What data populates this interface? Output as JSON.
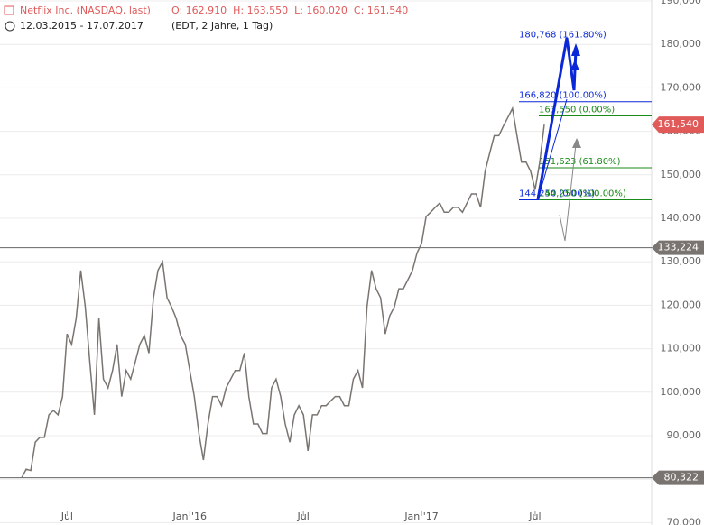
{
  "chart_data": {
    "type": "line",
    "title": "Netflix Inc. (NASDAQ, last)",
    "ohlc": "O: 162,910  H: 163,550  L: 160,020  C: 161,540",
    "range": "12.03.2015 - 17.07.2017",
    "settings": "(EDT, 2 Jahre, 1 Tag)",
    "categories": [
      null,
      null,
      null,
      null,
      null,
      null,
      null,
      null,
      null,
      null,
      "Jul",
      null,
      null,
      null,
      null,
      null,
      null,
      null,
      null,
      null,
      null,
      null,
      null,
      null,
      null,
      null,
      null,
      null,
      null,
      null,
      null,
      null,
      null,
      null,
      null,
      null,
      null,
      "Jan '16",
      null,
      null,
      null,
      null,
      null,
      null,
      null,
      null,
      null,
      null,
      null,
      null,
      null,
      null,
      null,
      null,
      null,
      null,
      null,
      null,
      null,
      null,
      null,
      null,
      "Jul",
      null,
      null,
      null,
      null,
      null,
      null,
      null,
      null,
      null,
      null,
      null,
      null,
      null,
      null,
      null,
      null,
      null,
      null,
      null,
      null,
      null,
      null,
      null,
      null,
      null,
      "Jan '17",
      null,
      null,
      null,
      null,
      null,
      null,
      null,
      null,
      null,
      null,
      null,
      null,
      null,
      null,
      null,
      null,
      null,
      null,
      null,
      null,
      null,
      null,
      null,
      null,
      "Jul",
      null,
      null
    ],
    "series": [
      {
        "name": "Netflix Inc.",
        "color": "#7a7470",
        "values": [
          80.3,
          82.3,
          82,
          88.5,
          89.6,
          89.6,
          94.8,
          95.8,
          94.8,
          99,
          113.4,
          111,
          117,
          128,
          119.6,
          107,
          94.8,
          117,
          103,
          101,
          105,
          111,
          99,
          105,
          103,
          107,
          111,
          113,
          109,
          121.7,
          128,
          130,
          121.7,
          119.6,
          117,
          113,
          111,
          105,
          99,
          90.5,
          84.4,
          92.7,
          99,
          99,
          96.9,
          101,
          103,
          105,
          105,
          109,
          99,
          92.7,
          92.7,
          90.5,
          90.5,
          101,
          103,
          99,
          92.7,
          88.5,
          94.8,
          96.9,
          94.8,
          86.5,
          94.8,
          94.8,
          96.9,
          96.9,
          98,
          99,
          99,
          96.9,
          96.9,
          103,
          105,
          101,
          119.6,
          128,
          123.8,
          121.7,
          113.4,
          117.6,
          119.6,
          123.8,
          123.8,
          125.9,
          128,
          132,
          134.2,
          140.4,
          141.4,
          142.5,
          143.5,
          141.4,
          141.4,
          142.5,
          142.5,
          141.4,
          143.5,
          145.6,
          145.6,
          142.5,
          150.8,
          155,
          159,
          159,
          161.2,
          163.2,
          165.3,
          159,
          152.9,
          152.9,
          150.8,
          146.6,
          152.9,
          161.54
        ]
      }
    ],
    "ylim": [
      70,
      190
    ],
    "yticks": [
      {
        "value": 70,
        "label": "70,000"
      },
      {
        "value": 80,
        "label": "80,000"
      },
      {
        "value": 90,
        "label": "90,000"
      },
      {
        "value": 100,
        "label": "100,000"
      },
      {
        "value": 110,
        "label": "110,000"
      },
      {
        "value": 120,
        "label": "120,000"
      },
      {
        "value": 130,
        "label": "130,000"
      },
      {
        "value": 140,
        "label": "140,000"
      },
      {
        "value": 150,
        "label": "150,000"
      },
      {
        "value": 160,
        "label": "160,000"
      },
      {
        "value": 170,
        "label": "170,000"
      },
      {
        "value": 180,
        "label": "180,000"
      },
      {
        "value": 190,
        "label": "190,000"
      }
    ],
    "grid": true,
    "hlines": [
      {
        "value": 133.224,
        "label": "133,224"
      },
      {
        "value": 80.322,
        "label": "80,322"
      }
    ],
    "last_price": {
      "value": 161.54,
      "label": "161,540",
      "color": "#e05a5a"
    },
    "fib_levels": [
      {
        "value": 180.768,
        "label": "180,768 (161.80%)",
        "color": "#0a28d8"
      },
      {
        "value": 166.82,
        "label": "166,820 (100.00%)",
        "color": "#0a28d8"
      },
      {
        "value": 144.25,
        "label": "144,250 (0.00%)",
        "color": "#0a28d8"
      },
      {
        "value": 163.55,
        "label": "163,550 (0.00%)",
        "color": "#1a8a1a"
      },
      {
        "value": 151.623,
        "label": "151,623 (61.80%)",
        "color": "#1a8a1a"
      },
      {
        "value": 144.25,
        "label": "144,250 (100.00%)",
        "color": "#1a8a1a"
      }
    ]
  }
}
